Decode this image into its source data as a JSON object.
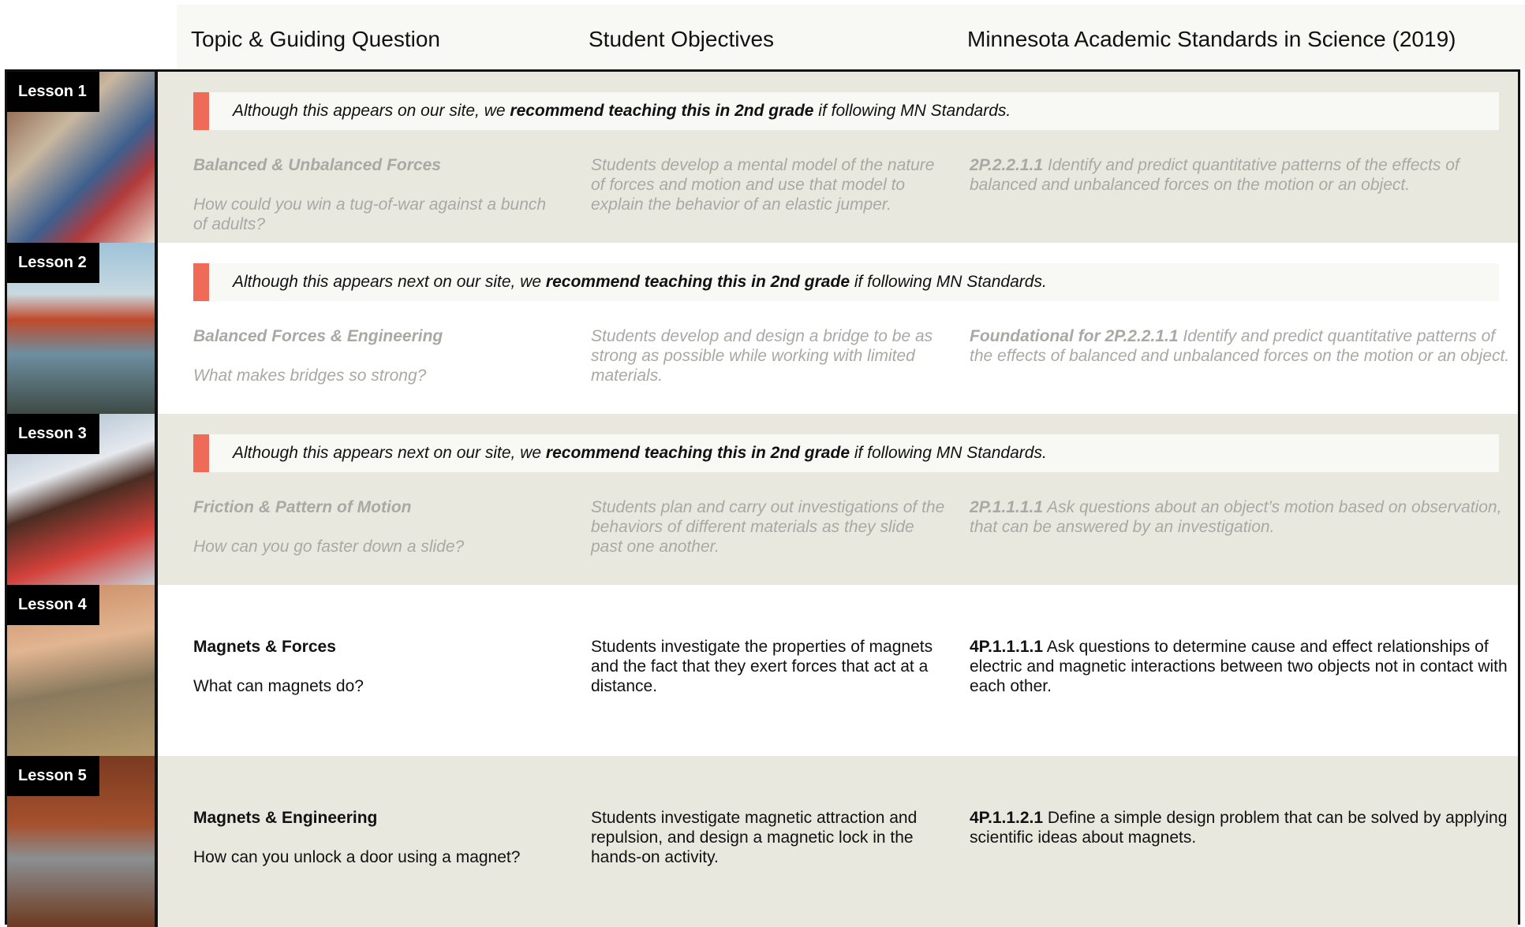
{
  "header": {
    "columns": [
      "Topic & Guiding Question",
      "Student Objectives",
      "Minnesota Academic Standards in Science (2019)"
    ]
  },
  "lessons": [
    {
      "label": "Lesson 1",
      "notice": {
        "before": "Although this appears on our site, we ",
        "bold": "recommend teaching this in 2nd grade",
        "after": " if following MN Standards."
      },
      "topic": "Balanced & Unbalanced Forces",
      "question": "How could you win a tug-of-war against a bunch of adults?",
      "objective": "Students develop a mental model of the nature of forces and motion and use that model to explain the behavior of an elastic jumper.",
      "standard_code": "2P.2.2.1.1",
      "standard_text": "Identify and predict quantitative patterns of the effects of balanced and unbalanced forces on the motion or an object."
    },
    {
      "label": "Lesson 2",
      "notice": {
        "before": "Although this appears next on our site, we ",
        "bold": "recommend teaching this in 2nd grade",
        "after": " if following MN Standards."
      },
      "topic": "Balanced Forces & Engineering",
      "question": "What makes bridges so strong?",
      "objective": "Students develop and design a bridge to be as strong as possible while working with limited materials.",
      "standard_code": "Foundational for 2P.2.2.1.1",
      "standard_text": "Identify and predict quantitative patterns of the effects of balanced and unbalanced forces on the motion or an object."
    },
    {
      "label": "Lesson 3",
      "notice": {
        "before": "Although this appears next on our site, we ",
        "bold": "recommend teaching this in 2nd grade",
        "after": " if following MN Standards."
      },
      "topic": "Friction & Pattern of Motion",
      "question": "How can you go faster down a slide?",
      "objective": "Students plan and carry out investigations of the behaviors of different materials as they slide past one another.",
      "standard_code": "2P.1.1.1.1",
      "standard_text": "Ask questions about an object’s motion based on observation, that can be answered by an investigation."
    },
    {
      "label": "Lesson 4",
      "topic": "Magnets & Forces",
      "question": "What can magnets do?",
      "objective": "Students investigate the properties of magnets and the fact that they exert forces that act at a distance.",
      "standard_code": "4P.1.1.1.1",
      "standard_text": "Ask questions to determine cause and effect relationships of electric and magnetic interactions between two objects not in contact with each other."
    },
    {
      "label": "Lesson 5",
      "topic": "Magnets & Engineering",
      "question": "How can you unlock a door using a magnet?",
      "objective": "Students investigate magnetic attraction and repulsion, and design a magnetic lock in the hands-on activity.",
      "standard_code": "4P.1.1.2.1",
      "standard_text": "Define a simple design problem that can be solved by applying scientific ideas about magnets."
    }
  ]
}
